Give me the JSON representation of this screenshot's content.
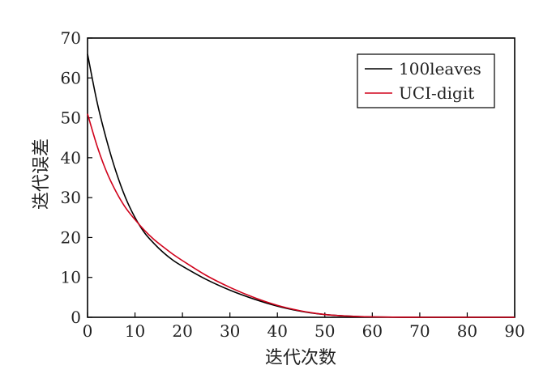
{
  "chart_data": {
    "type": "line",
    "title": "",
    "xlabel": "迭代次数",
    "ylabel": "迭代误差",
    "xlim": [
      0,
      90
    ],
    "ylim": [
      0,
      70
    ],
    "xticks": [
      0,
      10,
      20,
      30,
      40,
      50,
      60,
      70,
      80,
      90
    ],
    "yticks": [
      0,
      10,
      20,
      30,
      40,
      50,
      60,
      70
    ],
    "grid": false,
    "legend_position": "top-right",
    "series": [
      {
        "name": "100leaves",
        "color": "#000000",
        "x": [
          0,
          2,
          4,
          6,
          8,
          10,
          12,
          14,
          16,
          18,
          20,
          25,
          30,
          35,
          40,
          45,
          50,
          55,
          60,
          70,
          80,
          90
        ],
        "y": [
          66.0,
          54.0,
          44.5,
          36.5,
          30.0,
          25.0,
          21.2,
          18.5,
          16.2,
          14.3,
          12.8,
          9.5,
          6.8,
          4.6,
          2.8,
          1.5,
          0.7,
          0.3,
          0.1,
          0,
          0,
          0
        ]
      },
      {
        "name": "UCI-digit",
        "color": "#d0021b",
        "x": [
          0,
          2,
          4,
          6,
          8,
          10,
          12,
          14,
          16,
          18,
          20,
          25,
          30,
          35,
          40,
          45,
          50,
          55,
          60,
          70,
          80,
          90
        ],
        "y": [
          51.0,
          43.0,
          36.5,
          31.5,
          27.5,
          24.5,
          21.8,
          19.5,
          17.6,
          15.8,
          14.2,
          10.5,
          7.5,
          5.0,
          3.0,
          1.6,
          0.7,
          0.3,
          0.1,
          0,
          0,
          0
        ]
      }
    ]
  }
}
